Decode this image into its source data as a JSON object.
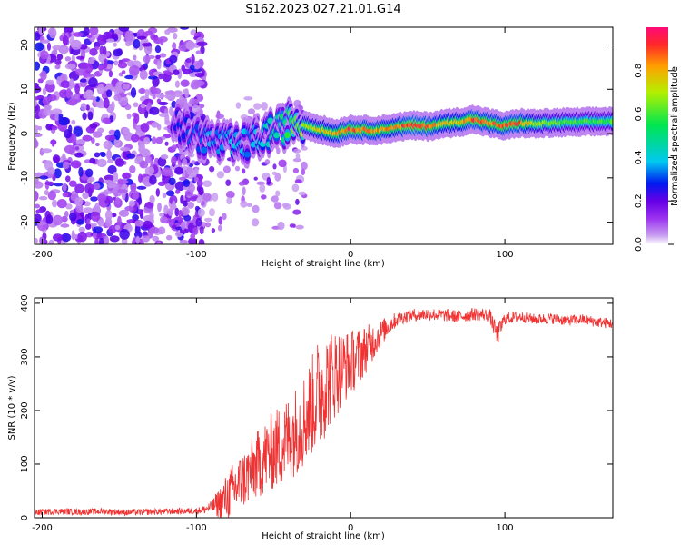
{
  "figure": {
    "title": "S162.2023.027.21.01.G14"
  },
  "chart_data": [
    {
      "type": "heatmap",
      "title": "",
      "xlabel": "Height of straight line (km)",
      "ylabel": "Frequency (Hz)",
      "xlim": [
        -205,
        170
      ],
      "ylim": [
        -25,
        24
      ],
      "xticks": [
        -200,
        -100,
        0,
        100
      ],
      "yticks": [
        -20,
        -10,
        0,
        10,
        20
      ],
      "grid": false,
      "colorbar": {
        "label": "Normalized spectral amplitude",
        "range": [
          0.0,
          1.0
        ],
        "ticks": [
          0.0,
          0.2,
          0.4,
          0.6,
          0.8
        ],
        "colors": [
          "#ffffff",
          "#c9a0f0",
          "#9b32f0",
          "#6400e6",
          "#0019f0",
          "#00c8f0",
          "#00e650",
          "#b4f000",
          "#ffa000",
          "#ff2828",
          "#ff0a78"
        ]
      },
      "ridge": {
        "description_values_only": true,
        "x": [
          -115,
          -105,
          -95,
          -85,
          -75,
          -65,
          -55,
          -45,
          -38,
          -30,
          -20,
          -10,
          0,
          10,
          20,
          30,
          40,
          50,
          60,
          70,
          80,
          90,
          100,
          110,
          120,
          130,
          140,
          150,
          160,
          168
        ],
        "freq": [
          3,
          0,
          -1,
          -2,
          -3,
          -2,
          0,
          1,
          3,
          2,
          1,
          0,
          1,
          0.8,
          0.8,
          1.5,
          1.8,
          1.6,
          2.2,
          2.6,
          3.2,
          2.4,
          1.7,
          2.4,
          2.2,
          2.4,
          2.5,
          2.6,
          2.7,
          2.8
        ],
        "amplitude": [
          0.25,
          0.3,
          0.35,
          0.35,
          0.4,
          0.35,
          0.45,
          0.5,
          0.6,
          0.7,
          0.75,
          0.82,
          0.9,
          0.88,
          0.85,
          0.82,
          0.95,
          0.9,
          0.8,
          0.78,
          0.92,
          0.85,
          0.88,
          0.9,
          0.7,
          0.65,
          0.62,
          0.6,
          0.6,
          0.6
        ]
      }
    },
    {
      "type": "line",
      "title": "",
      "xlabel": "Height of straight line (km)",
      "ylabel": "SNR (10 * v/v)",
      "xlim": [
        -205,
        170
      ],
      "ylim": [
        0,
        410
      ],
      "xticks": [
        -200,
        -100,
        0,
        100
      ],
      "yticks": [
        0,
        100,
        200,
        300,
        400
      ],
      "grid": false,
      "series": [
        {
          "color": "#f03232",
          "x": [
            -205,
            -190,
            -175,
            -160,
            -145,
            -130,
            -115,
            -100,
            -95,
            -90,
            -85,
            -80,
            -75,
            -70,
            -65,
            -60,
            -55,
            -50,
            -45,
            -40,
            -35,
            -30,
            -25,
            -20,
            -15,
            -10,
            -5,
            0,
            5,
            10,
            15,
            20,
            25,
            30,
            35,
            40,
            50,
            60,
            70,
            80,
            90,
            95,
            100,
            110,
            120,
            130,
            140,
            150,
            160,
            170
          ],
          "values": [
            10,
            12,
            11,
            12,
            10,
            11,
            12,
            13,
            15,
            20,
            28,
            40,
            55,
            70,
            85,
            100,
            115,
            125,
            135,
            150,
            165,
            185,
            210,
            235,
            255,
            270,
            280,
            290,
            300,
            315,
            330,
            345,
            360,
            370,
            375,
            378,
            380,
            378,
            375,
            380,
            378,
            340,
            372,
            375,
            370,
            372,
            368,
            370,
            365,
            362
          ],
          "noise_amplitude": [
            6,
            6,
            6,
            6,
            6,
            6,
            6,
            6,
            8,
            12,
            30,
            45,
            55,
            55,
            60,
            65,
            70,
            75,
            80,
            80,
            85,
            90,
            95,
            110,
            95,
            85,
            70,
            60,
            55,
            45,
            35,
            25,
            18,
            14,
            12,
            12,
            12,
            12,
            12,
            12,
            12,
            20,
            12,
            10,
            10,
            10,
            10,
            10,
            10,
            10
          ]
        }
      ]
    }
  ]
}
